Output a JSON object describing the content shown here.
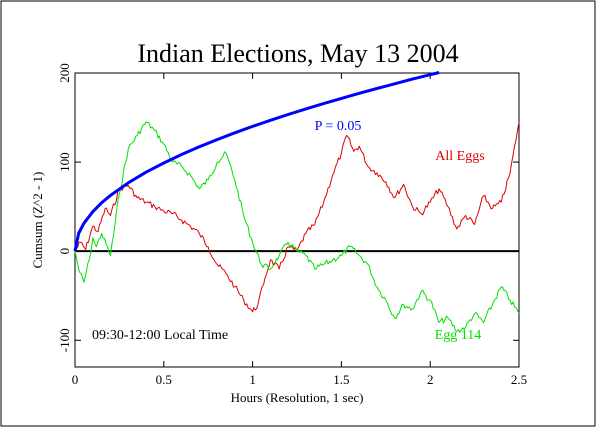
{
  "chart_data": {
    "type": "line",
    "title": "Indian Elections, May 13 2004",
    "xlabel": "Hours (Resolution, 1 sec)",
    "ylabel": "Cumsum (Z^2 - 1)",
    "xlim": [
      0,
      2.5
    ],
    "ylim": [
      -130,
      200
    ],
    "x_ticks": [
      0,
      0.5,
      1,
      1.5,
      2,
      2.5
    ],
    "x_tick_labels": [
      "0",
      "0.5",
      "1",
      "1.5",
      "2",
      "2.5"
    ],
    "y_ticks": [
      -100,
      0,
      100,
      200
    ],
    "y_tick_labels": [
      "-100",
      "0",
      "100",
      "200"
    ],
    "time_window_label": "09:30-12:00 Local Time",
    "grid": false,
    "reference_line": {
      "y": 0,
      "color": "#000000"
    },
    "series": [
      {
        "name": "P = 0.05",
        "color": "#0000ff",
        "kind": "envelope",
        "x": [
          0,
          0.02,
          0.05,
          0.1,
          0.15,
          0.2,
          0.3,
          0.4,
          0.5,
          0.6,
          0.7,
          0.8,
          0.9,
          1.0,
          1.1,
          1.2,
          1.3,
          1.4,
          1.5,
          1.6,
          1.7,
          1.8,
          1.9,
          2.0,
          2.05
        ],
        "y": [
          0,
          19.8,
          31.3,
          44.3,
          54.3,
          62.6,
          76.7,
          88.6,
          99.0,
          108.5,
          117.2,
          125.3,
          132.9,
          140.1,
          146.9,
          153.4,
          159.7,
          165.7,
          171.5,
          177.2,
          182.6,
          187.9,
          193.1,
          198.1,
          200.6
        ]
      },
      {
        "name": "All Eggs",
        "color": "#e00000",
        "x": [
          0,
          0.03,
          0.06,
          0.1,
          0.13,
          0.17,
          0.2,
          0.25,
          0.3,
          0.35,
          0.4,
          0.45,
          0.5,
          0.55,
          0.6,
          0.65,
          0.7,
          0.75,
          0.8,
          0.85,
          0.9,
          0.95,
          1.0,
          1.03,
          1.07,
          1.1,
          1.15,
          1.2,
          1.25,
          1.3,
          1.35,
          1.4,
          1.45,
          1.5,
          1.53,
          1.57,
          1.6,
          1.65,
          1.7,
          1.75,
          1.8,
          1.85,
          1.9,
          1.95,
          2.0,
          2.05,
          2.1,
          2.15,
          2.2,
          2.25,
          2.3,
          2.35,
          2.4,
          2.45,
          2.5
        ],
        "y": [
          0,
          10,
          2,
          28,
          22,
          48,
          40,
          70,
          74,
          60,
          55,
          50,
          45,
          42,
          35,
          28,
          20,
          5,
          -15,
          -25,
          -40,
          -55,
          -68,
          -60,
          -30,
          -10,
          -20,
          5,
          0,
          20,
          30,
          55,
          85,
          110,
          130,
          112,
          118,
          95,
          88,
          78,
          60,
          75,
          50,
          42,
          55,
          70,
          50,
          25,
          40,
          30,
          62,
          48,
          55,
          88,
          145
        ]
      },
      {
        "name": "Egg 114",
        "color": "#00e000",
        "x": [
          0,
          0.02,
          0.05,
          0.08,
          0.1,
          0.12,
          0.15,
          0.2,
          0.25,
          0.3,
          0.35,
          0.4,
          0.45,
          0.5,
          0.55,
          0.6,
          0.65,
          0.7,
          0.75,
          0.8,
          0.85,
          0.9,
          0.95,
          1.0,
          1.05,
          1.1,
          1.15,
          1.2,
          1.25,
          1.3,
          1.35,
          1.4,
          1.45,
          1.5,
          1.55,
          1.6,
          1.65,
          1.7,
          1.75,
          1.8,
          1.85,
          1.9,
          1.95,
          2.0,
          2.05,
          2.1,
          2.15,
          2.2,
          2.25,
          2.3,
          2.35,
          2.4,
          2.45,
          2.5
        ],
        "y": [
          0,
          -20,
          -35,
          -10,
          15,
          5,
          20,
          -5,
          65,
          115,
          130,
          145,
          135,
          120,
          100,
          95,
          85,
          70,
          80,
          100,
          110,
          80,
          40,
          10,
          -15,
          -20,
          -5,
          10,
          0,
          -5,
          -20,
          -15,
          -10,
          -5,
          5,
          -5,
          -15,
          -40,
          -55,
          -75,
          -60,
          -65,
          -45,
          -55,
          -80,
          -75,
          -90,
          -85,
          -70,
          -80,
          -60,
          -40,
          -55,
          -70
        ]
      }
    ],
    "annotations": [
      {
        "text": "P = 0.05",
        "color": "#0000ff"
      },
      {
        "text": "All Eggs",
        "color": "#e00000"
      },
      {
        "text": "Egg 114",
        "color": "#00e000"
      },
      {
        "text": "09:30-12:00 Local Time",
        "color": "#000000"
      }
    ]
  }
}
